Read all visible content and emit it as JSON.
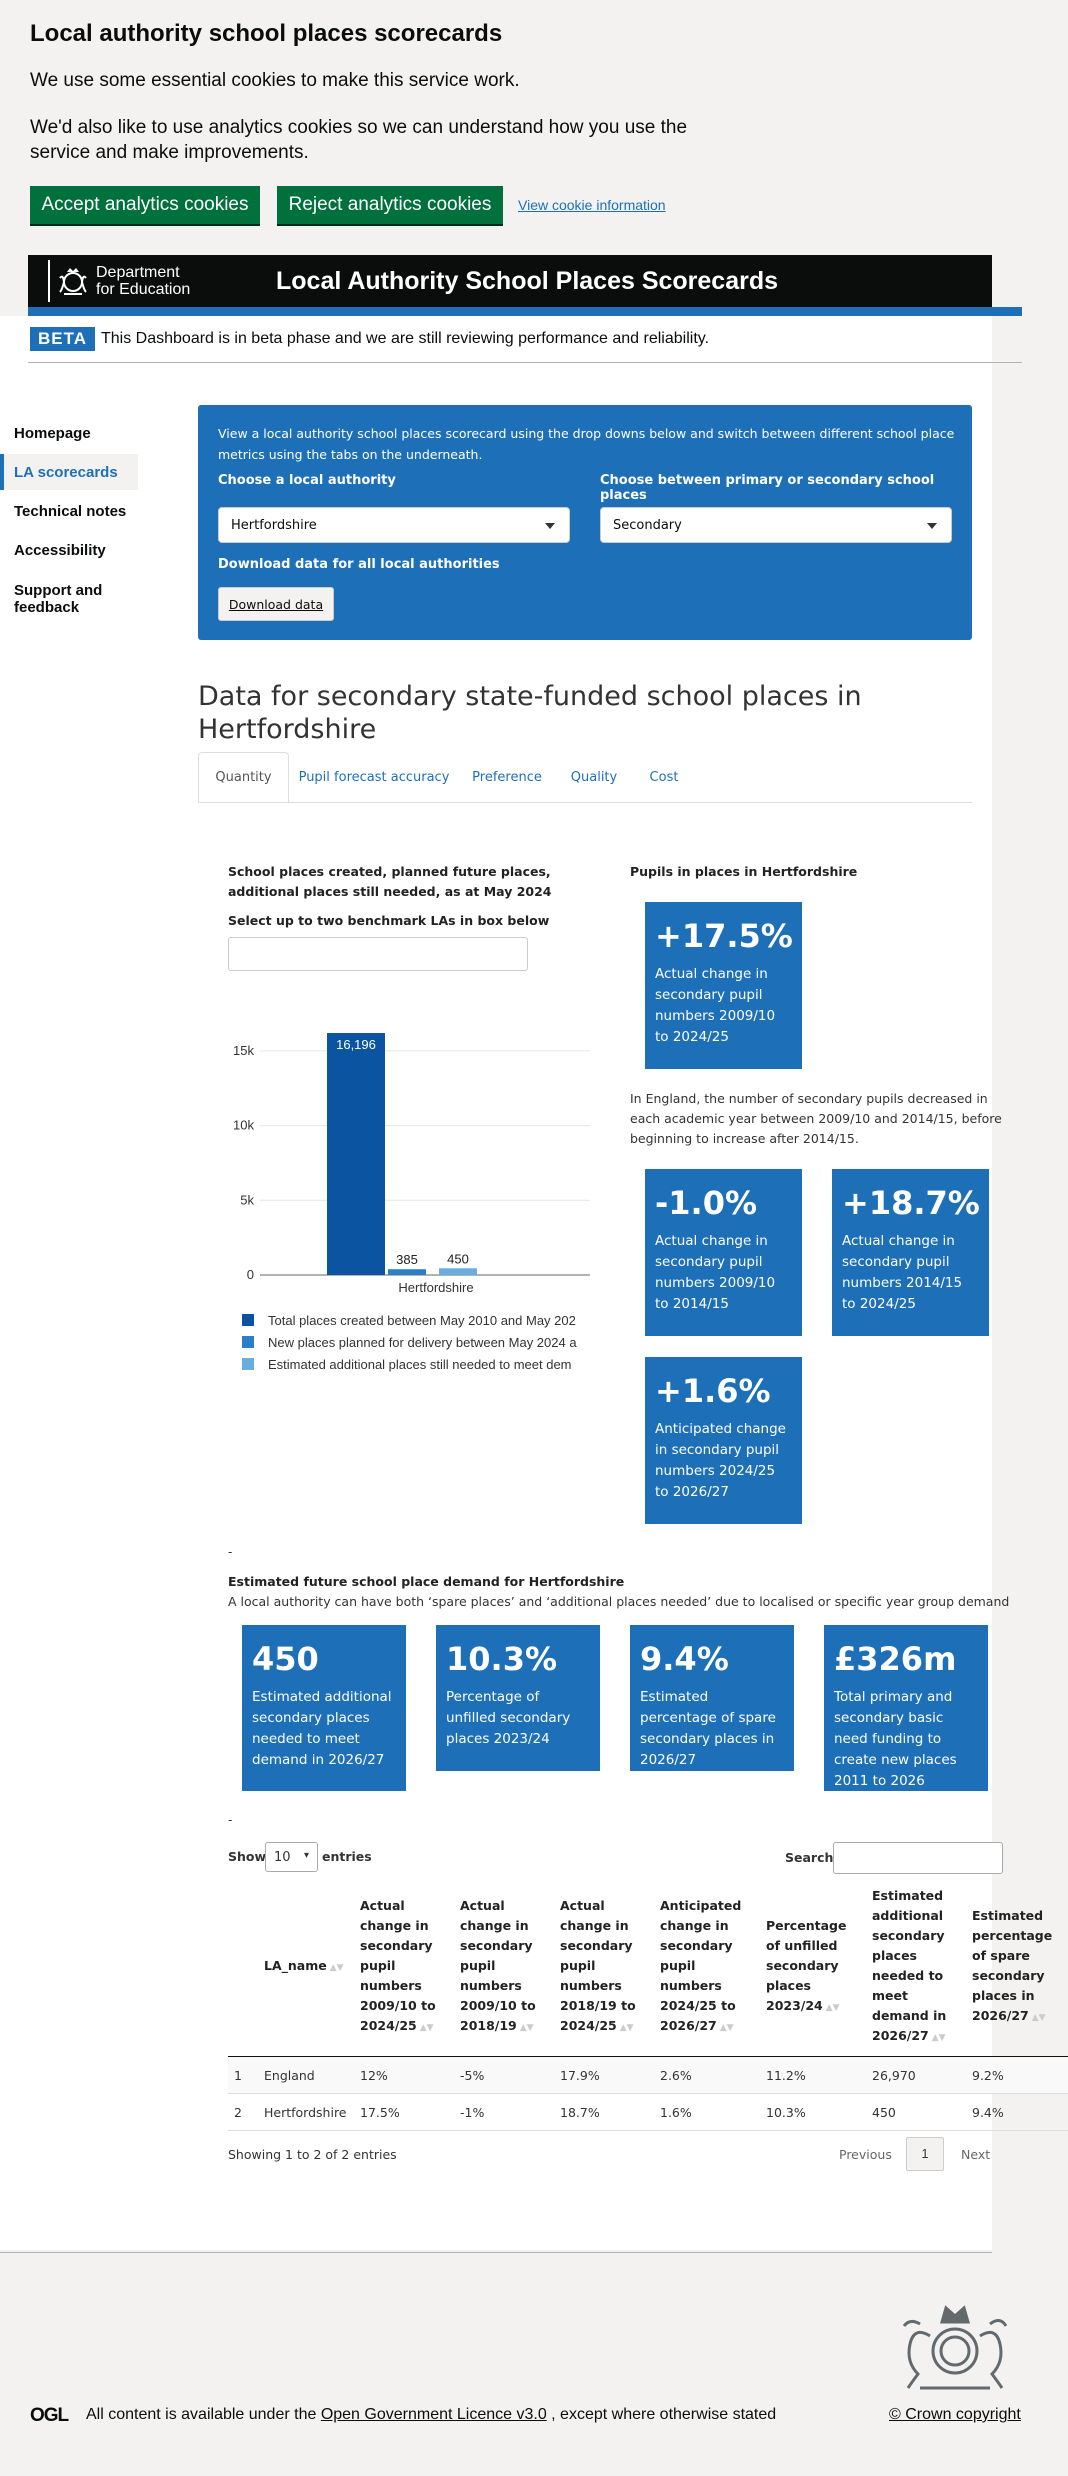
{
  "cookie_banner": {
    "title": "Local authority school places scorecards",
    "p1": "We use some essential cookies to make this service work.",
    "p2": "We'd also like to use analytics cookies so we can understand how you use the service and make improvements.",
    "accept": "Accept analytics cookies",
    "reject": "Reject analytics cookies",
    "view_info": "View cookie information"
  },
  "header": {
    "logo_line1": "Department",
    "logo_line2": "for Education",
    "title": "Local Authority School Places Scorecards"
  },
  "beta": {
    "tag": "BETA",
    "text": "This Dashboard is in beta phase and we are still reviewing performance and reliability."
  },
  "sidebar": {
    "items": [
      {
        "label": "Homepage"
      },
      {
        "label": "LA scorecards"
      },
      {
        "label": "Technical notes"
      },
      {
        "label": "Accessibility"
      },
      {
        "label": "Support and feedback"
      }
    ]
  },
  "filter_panel": {
    "intro": "View a local authority school places scorecard using the drop downs below and switch between different school place metrics using the tabs on the underneath.",
    "la_label": "Choose a local authority",
    "la_value": "Hertfordshire",
    "phase_label": "Choose between primary or secondary school places",
    "phase_value": "Secondary",
    "download_label": "Download data for all local authorities",
    "download_button": "Download data"
  },
  "page_heading": "Data for secondary state-funded school places in Hertfordshire",
  "tabs": [
    "Quantity",
    "Pupil forecast accuracy",
    "Preference",
    "Quality",
    "Cost"
  ],
  "quantity": {
    "chart_heading": "School places created, planned future places, additional places still needed, as at May 2024",
    "benchmark_label": "Select up to two benchmark LAs in box below",
    "pupils_heading": "Pupils in places in Hertfordshire",
    "tile1_big": "+17.5%",
    "tile1_text": "Actual change in secondary pupil numbers 2009/10 to 2024/25",
    "england_note": "In England, the number of secondary pupils decreased in each academic year between 2009/10 and 2014/15, before beginning to increase after 2014/15.",
    "tile2_big": "-1.0%",
    "tile2_text": "Actual change in secondary pupil numbers 2009/10 to 2014/15",
    "tile3_big": "+18.7%",
    "tile3_text": "Actual change in secondary pupil numbers 2014/15 to 2024/25",
    "tile4_big": "+1.6%",
    "tile4_text": "Anticipated change in secondary pupil numbers 2024/25 to 2026/27",
    "dash": "-",
    "demand_heading": "Estimated future school place demand for Hertfordshire",
    "demand_sub": "A local authority can have both ‘spare places’ and ‘additional places needed’ due to localised or specific year group demand",
    "demand_tiles": [
      {
        "big": "450",
        "text": "Estimated additional secondary places needed to meet demand in 2026/27"
      },
      {
        "big": "10.3%",
        "text": "Percentage of unfilled secondary places 2023/24"
      },
      {
        "big": "9.4%",
        "text": "Estimated percentage of spare secondary places in 2026/27"
      },
      {
        "big": "£326m",
        "text": "Total primary and secondary basic need funding to create new places 2011 to 2026"
      }
    ]
  },
  "chart_data": {
    "type": "bar",
    "categories": [
      "Hertfordshire"
    ],
    "series": [
      {
        "name": "Total places created between May 2010 and May 202",
        "values": [
          16196
        ],
        "color": "#0b54a1"
      },
      {
        "name": "New places planned for delivery between May 2024 a",
        "values": [
          385
        ],
        "color": "#2a7fc9"
      },
      {
        "name": "Estimated additional places still needed to meet dem",
        "values": [
          450
        ],
        "color": "#6aaee0"
      }
    ],
    "data_labels": [
      "16,196",
      "385",
      "450"
    ],
    "y_ticks": [
      "0",
      "5k",
      "10k",
      "15k"
    ],
    "ylim": [
      0,
      16800
    ],
    "grid": true,
    "legend": "bottom"
  },
  "table": {
    "show_label": "Show",
    "entries_value": "10",
    "entries_label": "entries",
    "search_label": "Search:",
    "columns": [
      "",
      "LA_name",
      "Actual change in secondary pupil numbers 2009/10 to 2024/25",
      "Actual change in secondary pupil numbers 2009/10 to 2018/19",
      "Actual change in secondary pupil numbers 2018/19 to 2024/25",
      "Anticipated change in secondary pupil numbers 2024/25 to 2026/27",
      "Percentage of unfilled secondary places 2023/24",
      "Estimated additional secondary places needed to meet demand in 2026/27",
      "Estimated percentage of spare secondary places in 2026/27"
    ],
    "rows": [
      [
        "1",
        "England",
        "12%",
        "-5%",
        "17.9%",
        "2.6%",
        "11.2%",
        "26,970",
        "9.2%"
      ],
      [
        "2",
        "Hertfordshire",
        "17.5%",
        "-1%",
        "18.7%",
        "1.6%",
        "10.3%",
        "450",
        "9.4%"
      ]
    ],
    "info": "Showing 1 to 2 of 2 entries",
    "previous": "Previous",
    "page": "1",
    "next": "Next"
  },
  "footer": {
    "ogl": "OGL",
    "text_before": "All content is available under the ",
    "licence_link": "Open Government Licence v3.0",
    "text_after": " , except where otherwise stated",
    "crown": "© Crown copyright"
  }
}
